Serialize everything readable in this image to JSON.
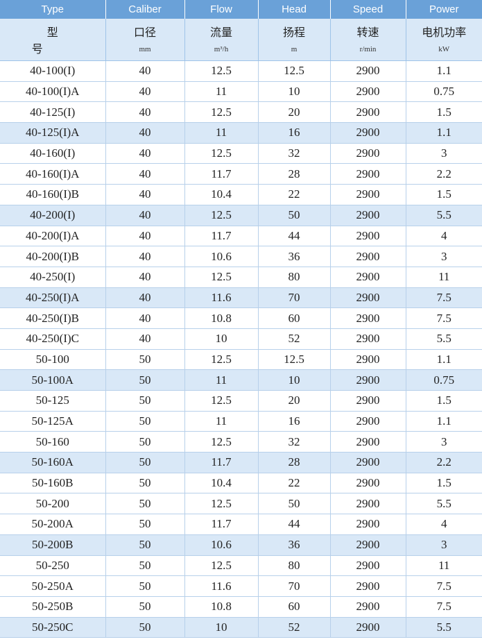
{
  "header": {
    "en": [
      "Type",
      "Caliber",
      "Flow",
      "Head",
      "Speed",
      "Power"
    ],
    "cn": [
      "型号",
      "口径",
      "流量",
      "扬程",
      "转速",
      "电机功率"
    ],
    "units": [
      "",
      "mm",
      "m³/h",
      "m",
      "r/min",
      "kW"
    ]
  },
  "rows": [
    {
      "type": "40-100(I)",
      "caliber": "40",
      "flow": "12.5",
      "head": "12.5",
      "speed": "2900",
      "power": "1.1",
      "highlight": false
    },
    {
      "type": "40-100(I)A",
      "caliber": "40",
      "flow": "11",
      "head": "10",
      "speed": "2900",
      "power": "0.75",
      "highlight": false
    },
    {
      "type": "40-125(I)",
      "caliber": "40",
      "flow": "12.5",
      "head": "20",
      "speed": "2900",
      "power": "1.5",
      "highlight": false
    },
    {
      "type": "40-125(I)A",
      "caliber": "40",
      "flow": "11",
      "head": "16",
      "speed": "2900",
      "power": "1.1",
      "highlight": true
    },
    {
      "type": "40-160(I)",
      "caliber": "40",
      "flow": "12.5",
      "head": "32",
      "speed": "2900",
      "power": "3",
      "highlight": false
    },
    {
      "type": "40-160(I)A",
      "caliber": "40",
      "flow": "11.7",
      "head": "28",
      "speed": "2900",
      "power": "2.2",
      "highlight": false
    },
    {
      "type": "40-160(I)B",
      "caliber": "40",
      "flow": "10.4",
      "head": "22",
      "speed": "2900",
      "power": "1.5",
      "highlight": false
    },
    {
      "type": "40-200(I)",
      "caliber": "40",
      "flow": "12.5",
      "head": "50",
      "speed": "2900",
      "power": "5.5",
      "highlight": true
    },
    {
      "type": "40-200(I)A",
      "caliber": "40",
      "flow": "11.7",
      "head": "44",
      "speed": "2900",
      "power": "4",
      "highlight": false
    },
    {
      "type": "40-200(I)B",
      "caliber": "40",
      "flow": "10.6",
      "head": "36",
      "speed": "2900",
      "power": "3",
      "highlight": false
    },
    {
      "type": "40-250(I)",
      "caliber": "40",
      "flow": "12.5",
      "head": "80",
      "speed": "2900",
      "power": "11",
      "highlight": false
    },
    {
      "type": "40-250(I)A",
      "caliber": "40",
      "flow": "11.6",
      "head": "70",
      "speed": "2900",
      "power": "7.5",
      "highlight": true
    },
    {
      "type": "40-250(I)B",
      "caliber": "40",
      "flow": "10.8",
      "head": "60",
      "speed": "2900",
      "power": "7.5",
      "highlight": false
    },
    {
      "type": "40-250(I)C",
      "caliber": "40",
      "flow": "10",
      "head": "52",
      "speed": "2900",
      "power": "5.5",
      "highlight": false
    },
    {
      "type": "50-100",
      "caliber": "50",
      "flow": "12.5",
      "head": "12.5",
      "speed": "2900",
      "power": "1.1",
      "highlight": false
    },
    {
      "type": "50-100A",
      "caliber": "50",
      "flow": "11",
      "head": "10",
      "speed": "2900",
      "power": "0.75",
      "highlight": true
    },
    {
      "type": "50-125",
      "caliber": "50",
      "flow": "12.5",
      "head": "20",
      "speed": "2900",
      "power": "1.5",
      "highlight": false
    },
    {
      "type": "50-125A",
      "caliber": "50",
      "flow": "11",
      "head": "16",
      "speed": "2900",
      "power": "1.1",
      "highlight": false
    },
    {
      "type": "50-160",
      "caliber": "50",
      "flow": "12.5",
      "head": "32",
      "speed": "2900",
      "power": "3",
      "highlight": false
    },
    {
      "type": "50-160A",
      "caliber": "50",
      "flow": "11.7",
      "head": "28",
      "speed": "2900",
      "power": "2.2",
      "highlight": true
    },
    {
      "type": "50-160B",
      "caliber": "50",
      "flow": "10.4",
      "head": "22",
      "speed": "2900",
      "power": "1.5",
      "highlight": false
    },
    {
      "type": "50-200",
      "caliber": "50",
      "flow": "12.5",
      "head": "50",
      "speed": "2900",
      "power": "5.5",
      "highlight": false
    },
    {
      "type": "50-200A",
      "caliber": "50",
      "flow": "11.7",
      "head": "44",
      "speed": "2900",
      "power": "4",
      "highlight": false
    },
    {
      "type": "50-200B",
      "caliber": "50",
      "flow": "10.6",
      "head": "36",
      "speed": "2900",
      "power": "3",
      "highlight": true
    },
    {
      "type": "50-250",
      "caliber": "50",
      "flow": "12.5",
      "head": "80",
      "speed": "2900",
      "power": "11",
      "highlight": false
    },
    {
      "type": "50-250A",
      "caliber": "50",
      "flow": "11.6",
      "head": "70",
      "speed": "2900",
      "power": "7.5",
      "highlight": false
    },
    {
      "type": "50-250B",
      "caliber": "50",
      "flow": "10.8",
      "head": "60",
      "speed": "2900",
      "power": "7.5",
      "highlight": false
    },
    {
      "type": "50-250C",
      "caliber": "50",
      "flow": "10",
      "head": "52",
      "speed": "2900",
      "power": "5.5",
      "highlight": true
    }
  ]
}
